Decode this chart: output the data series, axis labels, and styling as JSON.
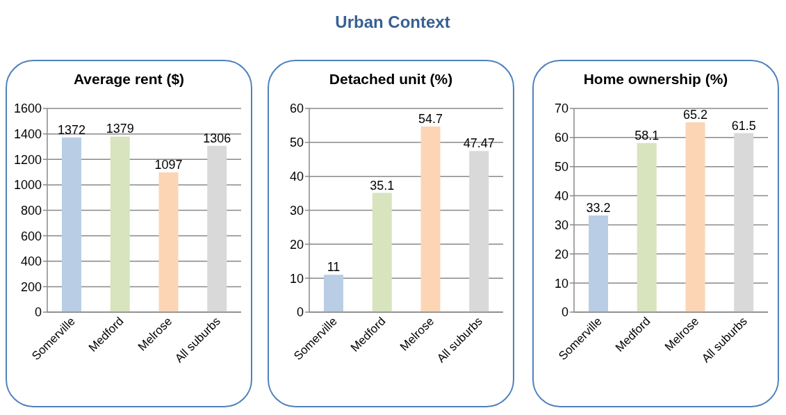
{
  "chart_data": [
    {
      "type": "bar",
      "title": "Average rent ($)",
      "annotations": [
        "Urban Context"
      ],
      "categories": [
        "Somerville",
        "Medford",
        "Melrose",
        "All suburbs"
      ],
      "values": [
        1372,
        1379,
        1097,
        1306
      ],
      "colors": [
        "#b9cde5",
        "#d7e4bd",
        "#fcd5b5",
        "#d9d9d9"
      ],
      "ylim": [
        0,
        1600
      ],
      "yticks": [
        0,
        200,
        400,
        600,
        800,
        1000,
        1200,
        1400,
        1600
      ],
      "grid": "y",
      "data_labels": true,
      "legend": false
    },
    {
      "type": "bar",
      "title": "Detached unit (%)",
      "categories": [
        "Somerville",
        "Medford",
        "Melrose",
        "All suburbs"
      ],
      "values": [
        11,
        35.1,
        54.7,
        47.47
      ],
      "colors": [
        "#b9cde5",
        "#d7e4bd",
        "#fcd5b5",
        "#d9d9d9"
      ],
      "ylim": [
        0,
        60
      ],
      "yticks": [
        0,
        10,
        20,
        30,
        40,
        50,
        60
      ],
      "grid": "y",
      "data_labels": true,
      "legend": false
    },
    {
      "type": "bar",
      "title": "Home ownership (%)",
      "categories": [
        "Somerville",
        "Medford",
        "Melrose",
        "All suburbs"
      ],
      "values": [
        33.2,
        58.1,
        65.2,
        61.5
      ],
      "colors": [
        "#b9cde5",
        "#d7e4bd",
        "#fcd5b5",
        "#d9d9d9"
      ],
      "ylim": [
        0,
        70
      ],
      "yticks": [
        0,
        10,
        20,
        30,
        40,
        50,
        60,
        70
      ],
      "grid": "y",
      "data_labels": true,
      "legend": false
    }
  ]
}
